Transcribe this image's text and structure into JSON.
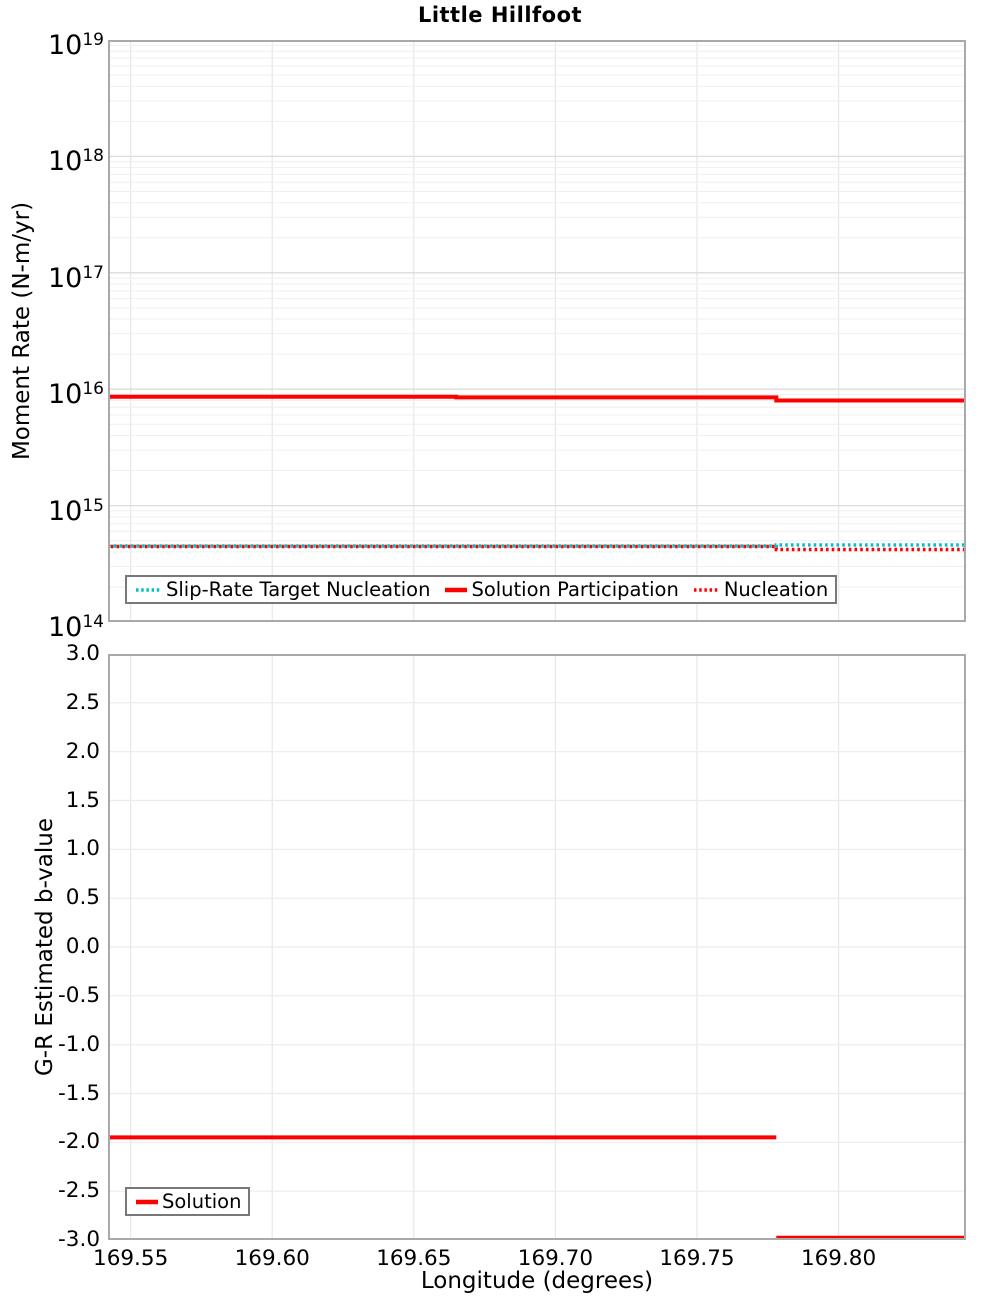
{
  "page": {
    "title": "Little Hillfoot",
    "xlabel": "Longitude (degrees)"
  },
  "colors": {
    "red": "#ff0000",
    "cyan": "#00bfc9",
    "grid_minor": "#efefef",
    "grid_major": "#dcdcdc",
    "grid_vertical": "#e7e7e7",
    "spine": "#a9a9a9",
    "legend_border": "#787878"
  },
  "chart_data": [
    {
      "type": "line",
      "title": "Little Hillfoot",
      "ylabel": "Moment Rate (N-m/yr)",
      "yscale": "log",
      "ylim": [
        100000000000000.0,
        1e+19
      ],
      "ytick_exponents": [
        19,
        18,
        17,
        16,
        15,
        14
      ],
      "xlim": [
        169.542,
        169.845
      ],
      "xticks": [
        169.55,
        169.6,
        169.65,
        169.7,
        169.75,
        169.8
      ],
      "show_xtick_labels": false,
      "grid": true,
      "legend_position": "bottom-left",
      "series": [
        {
          "name": "Slip-Rate Target Nucleation",
          "color": "#00bfc9",
          "style": "dotted",
          "segments": [
            [
              [
                169.542,
                450000000000000.0
              ],
              [
                169.778,
                450000000000000.0
              ],
              [
                169.778,
                460000000000000.0
              ],
              [
                169.845,
                460000000000000.0
              ]
            ]
          ]
        },
        {
          "name": "Solution Participation",
          "color": "#ff0000",
          "style": "solid",
          "segments": [
            [
              [
                169.542,
                8600000000000000.0
              ],
              [
                169.665,
                8600000000000000.0
              ],
              [
                169.665,
                8500000000000000.0
              ],
              [
                169.778,
                8500000000000000.0
              ],
              [
                169.778,
                8000000000000000.0
              ],
              [
                169.845,
                8000000000000000.0
              ]
            ]
          ]
        },
        {
          "name": "Nucleation",
          "color": "#ff0000",
          "style": "dotted",
          "segments": [
            [
              [
                169.542,
                445000000000000.0
              ],
              [
                169.778,
                445000000000000.0
              ],
              [
                169.778,
                420000000000000.0
              ],
              [
                169.845,
                420000000000000.0
              ]
            ]
          ]
        }
      ]
    },
    {
      "type": "line",
      "ylabel": "G-R Estimated b-value",
      "yscale": "linear",
      "ylim": [
        -3.0,
        3.0
      ],
      "yticks": [
        3.0,
        2.5,
        2.0,
        1.5,
        1.0,
        0.5,
        0.0,
        -0.5,
        -1.0,
        -1.5,
        -2.0,
        -2.5,
        -3.0
      ],
      "xlim": [
        169.542,
        169.845
      ],
      "xticks": [
        169.55,
        169.6,
        169.65,
        169.7,
        169.75,
        169.8
      ],
      "show_xtick_labels": true,
      "xlabel": "Longitude (degrees)",
      "grid": true,
      "legend_position": "bottom-left",
      "series": [
        {
          "name": "Solution",
          "color": "#ff0000",
          "style": "solid",
          "segments": [
            [
              [
                169.542,
                -1.95
              ],
              [
                169.778,
                -1.95
              ]
            ],
            [
              [
                169.778,
                -3.0
              ],
              [
                169.845,
                -3.0
              ]
            ]
          ]
        }
      ]
    }
  ]
}
